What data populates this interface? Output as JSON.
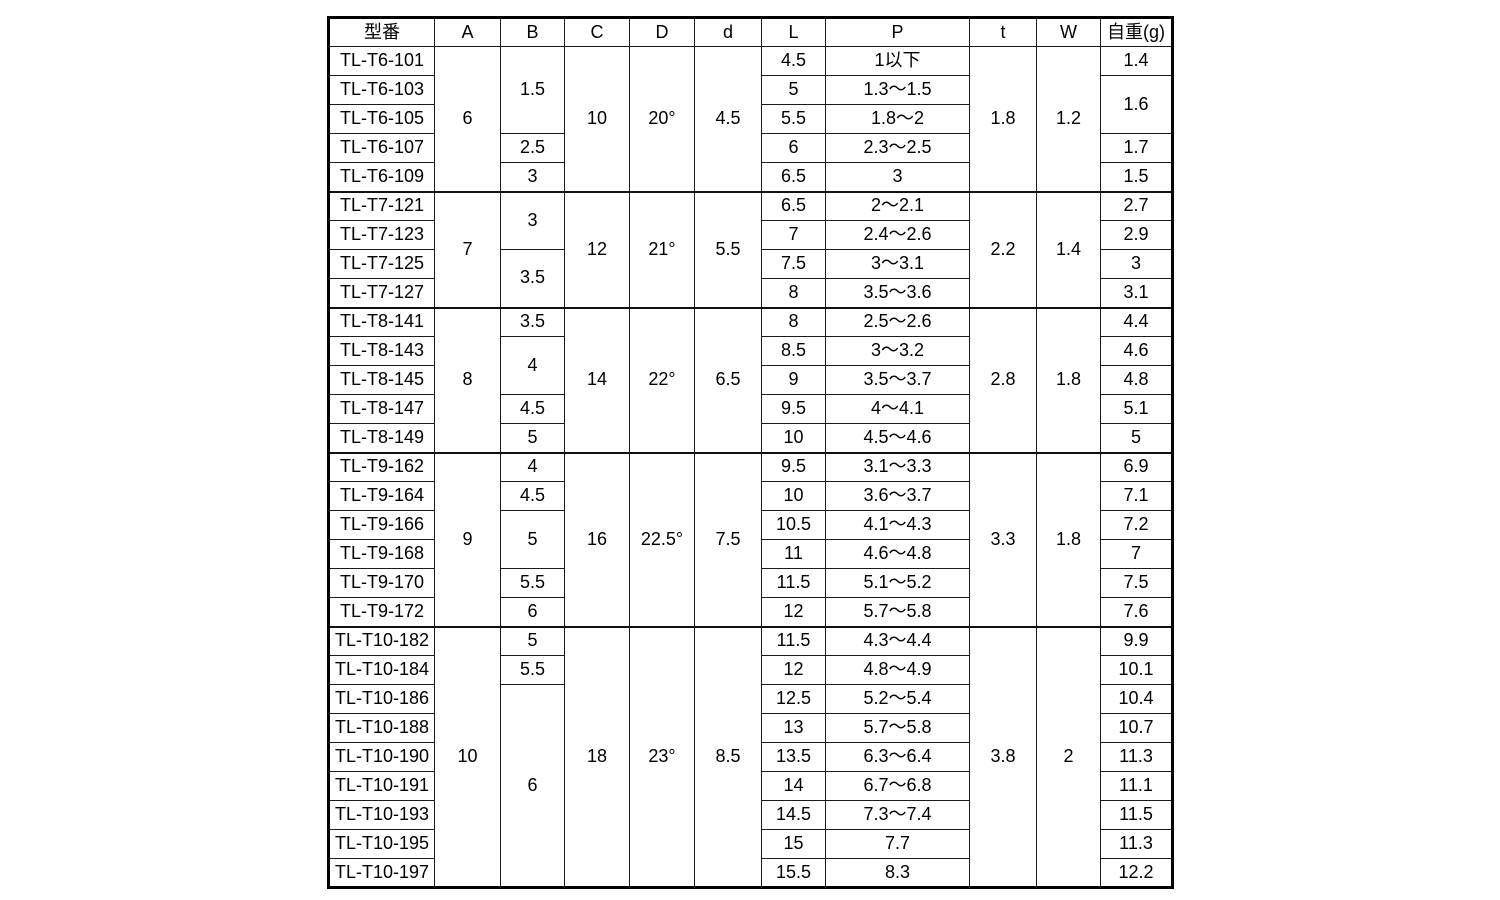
{
  "page": {
    "background_color": "#ffffff",
    "border_color": "#000000",
    "text_color": "#000000"
  },
  "table": {
    "headers": [
      {
        "key": "model",
        "label": "型番"
      },
      {
        "key": "A",
        "label": "A"
      },
      {
        "key": "B",
        "label": "B"
      },
      {
        "key": "C",
        "label": "C"
      },
      {
        "key": "D",
        "label": "D"
      },
      {
        "key": "d",
        "label": "d"
      },
      {
        "key": "L",
        "label": "L"
      },
      {
        "key": "P",
        "label": "P"
      },
      {
        "key": "t",
        "label": "t"
      },
      {
        "key": "W",
        "label": "W"
      },
      {
        "key": "weight",
        "label": "自重(g)"
      }
    ],
    "groups": [
      {
        "shared": {
          "A": "6",
          "C": "10",
          "D": "20°",
          "d": "4.5",
          "t": "1.8",
          "W": "1.2"
        },
        "b_spans": [
          {
            "value": "1.5",
            "span": 3
          },
          {
            "value": "2.5",
            "span": 1
          },
          {
            "value": "3",
            "span": 1
          }
        ],
        "weight_spans": [
          {
            "value": "1.4",
            "span": 1
          },
          {
            "value": "1.6",
            "span": 2
          },
          {
            "value": "1.7",
            "span": 1
          },
          {
            "value": "1.5",
            "span": 1
          }
        ],
        "rows": [
          {
            "model": "TL-T6-101",
            "L": "4.5",
            "P": "1以下"
          },
          {
            "model": "TL-T6-103",
            "L": "5",
            "P": "1.3〜1.5"
          },
          {
            "model": "TL-T6-105",
            "L": "5.5",
            "P": "1.8〜2"
          },
          {
            "model": "TL-T6-107",
            "L": "6",
            "P": "2.3〜2.5"
          },
          {
            "model": "TL-T6-109",
            "L": "6.5",
            "P": "3"
          }
        ]
      },
      {
        "shared": {
          "A": "7",
          "C": "12",
          "D": "21°",
          "d": "5.5",
          "t": "2.2",
          "W": "1.4"
        },
        "b_spans": [
          {
            "value": "3",
            "span": 2
          },
          {
            "value": "3.5",
            "span": 2
          }
        ],
        "weight_spans": [
          {
            "value": "2.7",
            "span": 1
          },
          {
            "value": "2.9",
            "span": 1
          },
          {
            "value": "3",
            "span": 1
          },
          {
            "value": "3.1",
            "span": 1
          }
        ],
        "rows": [
          {
            "model": "TL-T7-121",
            "L": "6.5",
            "P": "2〜2.1"
          },
          {
            "model": "TL-T7-123",
            "L": "7",
            "P": "2.4〜2.6"
          },
          {
            "model": "TL-T7-125",
            "L": "7.5",
            "P": "3〜3.1"
          },
          {
            "model": "TL-T7-127",
            "L": "8",
            "P": "3.5〜3.6"
          }
        ]
      },
      {
        "shared": {
          "A": "8",
          "C": "14",
          "D": "22°",
          "d": "6.5",
          "t": "2.8",
          "W": "1.8"
        },
        "b_spans": [
          {
            "value": "3.5",
            "span": 1
          },
          {
            "value": "4",
            "span": 2
          },
          {
            "value": "4.5",
            "span": 1
          },
          {
            "value": "5",
            "span": 1
          }
        ],
        "weight_spans": [
          {
            "value": "4.4",
            "span": 1
          },
          {
            "value": "4.6",
            "span": 1
          },
          {
            "value": "4.8",
            "span": 1
          },
          {
            "value": "5.1",
            "span": 1
          },
          {
            "value": "5",
            "span": 1
          }
        ],
        "rows": [
          {
            "model": "TL-T8-141",
            "L": "8",
            "P": "2.5〜2.6"
          },
          {
            "model": "TL-T8-143",
            "L": "8.5",
            "P": "3〜3.2"
          },
          {
            "model": "TL-T8-145",
            "L": "9",
            "P": "3.5〜3.7"
          },
          {
            "model": "TL-T8-147",
            "L": "9.5",
            "P": "4〜4.1"
          },
          {
            "model": "TL-T8-149",
            "L": "10",
            "P": "4.5〜4.6"
          }
        ]
      },
      {
        "shared": {
          "A": "9",
          "C": "16",
          "D": "22.5°",
          "d": "7.5",
          "t": "3.3",
          "W": "1.8"
        },
        "b_spans": [
          {
            "value": "4",
            "span": 1
          },
          {
            "value": "4.5",
            "span": 1
          },
          {
            "value": "5",
            "span": 2
          },
          {
            "value": "5.5",
            "span": 1
          },
          {
            "value": "6",
            "span": 1
          }
        ],
        "weight_spans": [
          {
            "value": "6.9",
            "span": 1
          },
          {
            "value": "7.1",
            "span": 1
          },
          {
            "value": "7.2",
            "span": 1
          },
          {
            "value": "7",
            "span": 1
          },
          {
            "value": "7.5",
            "span": 1
          },
          {
            "value": "7.6",
            "span": 1
          }
        ],
        "rows": [
          {
            "model": "TL-T9-162",
            "L": "9.5",
            "P": "3.1〜3.3"
          },
          {
            "model": "TL-T9-164",
            "L": "10",
            "P": "3.6〜3.7"
          },
          {
            "model": "TL-T9-166",
            "L": "10.5",
            "P": "4.1〜4.3"
          },
          {
            "model": "TL-T9-168",
            "L": "11",
            "P": "4.6〜4.8"
          },
          {
            "model": "TL-T9-170",
            "L": "11.5",
            "P": "5.1〜5.2"
          },
          {
            "model": "TL-T9-172",
            "L": "12",
            "P": "5.7〜5.8"
          }
        ]
      },
      {
        "shared": {
          "A": "10",
          "C": "18",
          "D": "23°",
          "d": "8.5",
          "t": "3.8",
          "W": "2"
        },
        "b_spans": [
          {
            "value": "5",
            "span": 1
          },
          {
            "value": "5.5",
            "span": 1
          },
          {
            "value": "6",
            "span": 7
          }
        ],
        "weight_spans": [
          {
            "value": "9.9",
            "span": 1
          },
          {
            "value": "10.1",
            "span": 1
          },
          {
            "value": "10.4",
            "span": 1
          },
          {
            "value": "10.7",
            "span": 1
          },
          {
            "value": "11.3",
            "span": 1
          },
          {
            "value": "11.1",
            "span": 1
          },
          {
            "value": "11.5",
            "span": 1
          },
          {
            "value": "11.3",
            "span": 1
          },
          {
            "value": "12.2",
            "span": 1
          }
        ],
        "rows": [
          {
            "model": "TL-T10-182",
            "L": "11.5",
            "P": "4.3〜4.4"
          },
          {
            "model": "TL-T10-184",
            "L": "12",
            "P": "4.8〜4.9"
          },
          {
            "model": "TL-T10-186",
            "L": "12.5",
            "P": "5.2〜5.4"
          },
          {
            "model": "TL-T10-188",
            "L": "13",
            "P": "5.7〜5.8"
          },
          {
            "model": "TL-T10-190",
            "L": "13.5",
            "P": "6.3〜6.4"
          },
          {
            "model": "TL-T10-191",
            "L": "14",
            "P": "6.7〜6.8"
          },
          {
            "model": "TL-T10-193",
            "L": "14.5",
            "P": "7.3〜7.4"
          },
          {
            "model": "TL-T10-195",
            "L": "15",
            "P": "7.7"
          },
          {
            "model": "TL-T10-197",
            "L": "15.5",
            "P": "8.3"
          }
        ]
      }
    ]
  }
}
